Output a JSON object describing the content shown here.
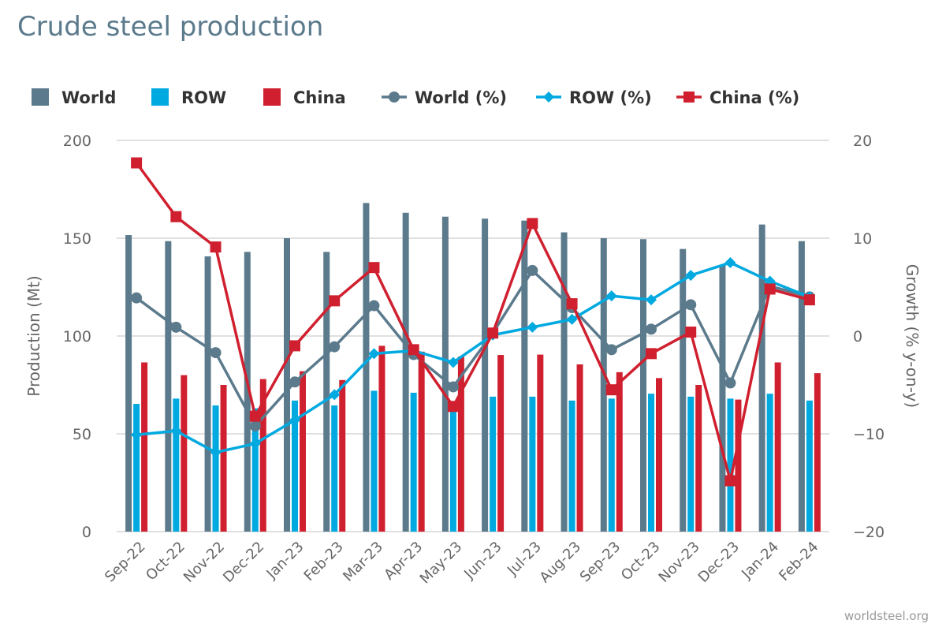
{
  "chart_data": {
    "type": "bar",
    "title": "Crude steel production",
    "ylabel": "Production (Mt)",
    "y2label": "Growth (% y-on-y)",
    "ylim": [
      0,
      200
    ],
    "y2lim": [
      -20,
      20
    ],
    "yticks": [
      "0",
      "50",
      "100",
      "150",
      "200"
    ],
    "y2ticks": [
      "−20",
      "−10",
      "0",
      "10",
      "20"
    ],
    "grid": true,
    "legend_position": "top",
    "categories": [
      "Sep-22",
      "Oct-22",
      "Nov-22",
      "Dec-22",
      "Jan-23",
      "Feb-23",
      "Mar-23",
      "Apr-23",
      "May-23",
      "Jun-23",
      "Jul-23",
      "Aug-23",
      "Sep-23",
      "Oct-23",
      "Nov-23",
      "Dec-23",
      "Jan-24",
      "Feb-24"
    ],
    "bar_series": [
      {
        "name": "World",
        "color": "#5b7a8c",
        "values": [
          151.6,
          148.5,
          140.7,
          143,
          150,
          143,
          168,
          163,
          161,
          160,
          159,
          153,
          150,
          149.5,
          144.5,
          136,
          157,
          148.5
        ]
      },
      {
        "name": "ROW",
        "color": "#00a9e0",
        "values": [
          65.3,
          68,
          64.5,
          63,
          67,
          64.5,
          72,
          71,
          66,
          69,
          69,
          67,
          68,
          70.5,
          69,
          68,
          70.5,
          67
        ]
      },
      {
        "name": "China",
        "color": "#d0202f",
        "values": [
          86.5,
          80,
          75,
          78,
          82,
          77.5,
          95,
          92,
          89.5,
          90.3,
          90.5,
          85.5,
          81.5,
          78.5,
          75,
          67.5,
          86.5,
          81
        ]
      }
    ],
    "line_series": [
      {
        "name": "World (%)",
        "color": "#5b7a8c",
        "marker": "circle",
        "values": [
          3.9,
          0.9,
          -1.7,
          -9.2,
          -4.7,
          -1.1,
          3.1,
          -1.9,
          -5.2,
          0.3,
          6.7,
          2.9,
          -1.4,
          0.7,
          3.2,
          -4.8,
          5.1,
          4.0
        ]
      },
      {
        "name": "ROW (%)",
        "color": "#00a9e0",
        "marker": "diamond",
        "values": [
          -10.1,
          -9.7,
          -11.9,
          -11.0,
          -8.6,
          -6.0,
          -1.8,
          -1.5,
          -2.7,
          0.1,
          0.9,
          1.7,
          4.1,
          3.7,
          6.2,
          7.5,
          5.6,
          4.0
        ]
      },
      {
        "name": "China (%)",
        "color": "#d0202f",
        "marker": "square",
        "values": [
          17.7,
          12.2,
          9.1,
          -8.2,
          -1.0,
          3.6,
          7.0,
          -1.4,
          -7.2,
          0.3,
          11.5,
          3.3,
          -5.5,
          -1.8,
          0.4,
          -14.8,
          4.8,
          3.7
        ]
      }
    ]
  },
  "credit": "worldsteel.org"
}
